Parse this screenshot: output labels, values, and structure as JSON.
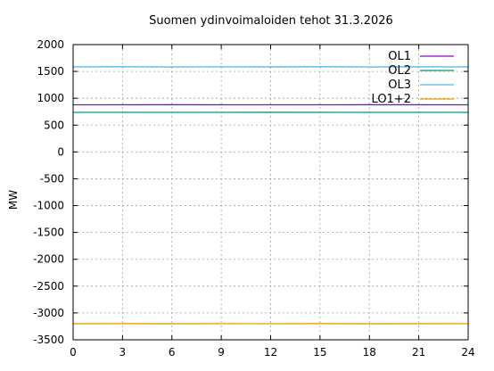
{
  "chart_data": {
    "type": "line",
    "title": "Suomen ydinvoimaloiden tehot 31.3.2026",
    "xlabel": "",
    "ylabel": "MW",
    "xlim": [
      0,
      24
    ],
    "ylim": [
      -3500,
      2000
    ],
    "xticks": [
      0,
      3,
      6,
      9,
      12,
      15,
      18,
      21,
      24
    ],
    "yticks": [
      -3500,
      -3000,
      -2500,
      -2000,
      -1500,
      -1000,
      -500,
      0,
      500,
      1000,
      1500,
      2000
    ],
    "grid": true,
    "legend_position": "top-right",
    "series": [
      {
        "name": "OL1",
        "color": "#9400d3",
        "x": [
          0,
          6,
          12,
          18,
          24
        ],
        "values": [
          878,
          879,
          878,
          879,
          878
        ]
      },
      {
        "name": "OL2",
        "color": "#009e73",
        "x": [
          0,
          6,
          12,
          18,
          24
        ],
        "values": [
          737,
          737,
          738,
          737,
          737
        ]
      },
      {
        "name": "OL3",
        "color": "#56b4e9",
        "x": [
          0,
          3,
          6,
          9,
          12,
          15,
          18,
          21,
          24
        ],
        "values": [
          1585,
          1588,
          1582,
          1587,
          1584,
          1588,
          1583,
          1586,
          1584
        ]
      },
      {
        "name": "LO1+2",
        "color": "#e69f00",
        "x": [
          0,
          3,
          6,
          9,
          12,
          15,
          18,
          21,
          24
        ],
        "values": [
          -3200,
          -3198,
          -3202,
          -3199,
          -3201,
          -3198,
          -3202,
          -3200,
          -3199
        ]
      }
    ]
  }
}
